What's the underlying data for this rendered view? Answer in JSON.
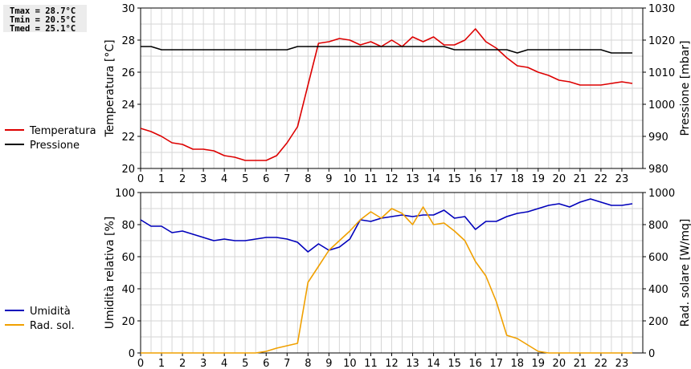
{
  "stats": {
    "tmax": "Tmax = 28.7°C",
    "tmin": "Tmin = 20.5°C",
    "tmed": "Tmed = 25.1°C"
  },
  "chart_data": [
    {
      "type": "line",
      "ylabel": "Temperatura [°C]",
      "y2label": "Pressione [mbar]",
      "xlim": [
        0,
        24
      ],
      "x_ticks": [
        0,
        1,
        2,
        3,
        4,
        5,
        6,
        7,
        8,
        9,
        10,
        11,
        12,
        13,
        14,
        15,
        16,
        17,
        18,
        19,
        20,
        21,
        22,
        23
      ],
      "ylim": [
        20,
        30
      ],
      "y_ticks": [
        20,
        22,
        24,
        26,
        28,
        30
      ],
      "y2lim": [
        980,
        1030
      ],
      "y2_ticks": [
        980,
        990,
        1000,
        1010,
        1020,
        1030
      ],
      "grid": true,
      "legend_position": "left",
      "series": [
        {
          "name": "Temperatura",
          "axis": "left",
          "color": "#dd0000",
          "x": [
            0,
            0.5,
            1,
            1.5,
            2,
            2.5,
            3,
            3.5,
            4,
            4.5,
            5,
            5.5,
            6,
            6.5,
            7,
            7.5,
            8,
            8.5,
            9,
            9.5,
            10,
            10.5,
            11,
            11.5,
            12,
            12.5,
            13,
            13.5,
            14,
            14.5,
            15,
            15.5,
            16,
            16.5,
            17,
            17.5,
            18,
            18.5,
            19,
            19.5,
            20,
            20.5,
            21,
            21.5,
            22,
            22.5,
            23,
            23.5
          ],
          "values": [
            22.5,
            22.3,
            22.0,
            21.6,
            21.5,
            21.2,
            21.2,
            21.1,
            20.8,
            20.7,
            20.5,
            20.5,
            20.5,
            20.8,
            21.6,
            22.6,
            25.2,
            27.8,
            27.9,
            28.1,
            28.0,
            27.7,
            27.9,
            27.6,
            28.0,
            27.6,
            28.2,
            27.9,
            28.2,
            27.7,
            27.7,
            28.0,
            28.7,
            27.9,
            27.5,
            26.9,
            26.4,
            26.3,
            26.0,
            25.8,
            25.5,
            25.4,
            25.2,
            25.2,
            25.2,
            25.3,
            25.4,
            25.3
          ]
        },
        {
          "name": "Pressione",
          "axis": "right",
          "color": "#000000",
          "x": [
            0,
            0.5,
            1,
            1.5,
            2,
            2.5,
            3,
            3.5,
            4,
            4.5,
            5,
            5.5,
            6,
            6.5,
            7,
            7.5,
            8,
            8.5,
            9,
            9.5,
            10,
            10.5,
            11,
            11.5,
            12,
            12.5,
            13,
            13.5,
            14,
            14.5,
            15,
            15.5,
            16,
            16.5,
            17,
            17.5,
            18,
            18.5,
            19,
            19.5,
            20,
            20.5,
            21,
            21.5,
            22,
            22.5,
            23,
            23.5
          ],
          "values": [
            1018,
            1018,
            1017,
            1017,
            1017,
            1017,
            1017,
            1017,
            1017,
            1017,
            1017,
            1017,
            1017,
            1017,
            1017,
            1018,
            1018,
            1018,
            1018,
            1018,
            1018,
            1018,
            1018,
            1018,
            1018,
            1018,
            1018,
            1018,
            1018,
            1018,
            1017,
            1017,
            1017,
            1017,
            1017,
            1017,
            1016,
            1017,
            1017,
            1017,
            1017,
            1017,
            1017,
            1017,
            1017,
            1016,
            1016,
            1016
          ]
        }
      ]
    },
    {
      "type": "line",
      "ylabel": "Umidità relativa [%]",
      "y2label": "Rad. solare [W/mq]",
      "xlim": [
        0,
        24
      ],
      "x_ticks": [
        0,
        1,
        2,
        3,
        4,
        5,
        6,
        7,
        8,
        9,
        10,
        11,
        12,
        13,
        14,
        15,
        16,
        17,
        18,
        19,
        20,
        21,
        22,
        23
      ],
      "ylim": [
        0,
        100
      ],
      "y_ticks": [
        0,
        20,
        40,
        60,
        80,
        100
      ],
      "y2lim": [
        0,
        1000
      ],
      "y2_ticks": [
        0,
        200,
        400,
        600,
        800,
        1000
      ],
      "grid": true,
      "legend_position": "left",
      "series": [
        {
          "name": "Umidità",
          "axis": "left",
          "color": "#0000bb",
          "x": [
            0,
            0.5,
            1,
            1.5,
            2,
            2.5,
            3,
            3.5,
            4,
            4.5,
            5,
            5.5,
            6,
            6.5,
            7,
            7.5,
            8,
            8.5,
            9,
            9.5,
            10,
            10.5,
            11,
            11.5,
            12,
            12.5,
            13,
            13.5,
            14,
            14.5,
            15,
            15.5,
            16,
            16.5,
            17,
            17.5,
            18,
            18.5,
            19,
            19.5,
            20,
            20.5,
            21,
            21.5,
            22,
            22.5,
            23,
            23.5
          ],
          "values": [
            83,
            79,
            79,
            75,
            76,
            74,
            72,
            70,
            71,
            70,
            70,
            71,
            72,
            72,
            71,
            69,
            63,
            68,
            64,
            66,
            71,
            83,
            82,
            84,
            85,
            86,
            85,
            86,
            86,
            89,
            84,
            85,
            77,
            82,
            82,
            85,
            87,
            88,
            90,
            92,
            93,
            91,
            94,
            96,
            94,
            92,
            92,
            93
          ]
        },
        {
          "name": "Rad. sol.",
          "axis": "right",
          "color": "#f0a000",
          "x": [
            0,
            0.5,
            1,
            1.5,
            2,
            2.5,
            3,
            3.5,
            4,
            4.5,
            5,
            5.5,
            6,
            6.5,
            7,
            7.5,
            8,
            8.5,
            9,
            9.5,
            10,
            10.5,
            11,
            11.5,
            12,
            12.5,
            13,
            13.5,
            14,
            14.5,
            15,
            15.5,
            16,
            16.5,
            17,
            17.5,
            18,
            18.5,
            19,
            19.5,
            20,
            20.5,
            21,
            21.5,
            22,
            22.5,
            23,
            23.5
          ],
          "values": [
            0,
            0,
            0,
            0,
            0,
            0,
            0,
            0,
            0,
            0,
            0,
            0,
            10,
            30,
            45,
            60,
            440,
            540,
            640,
            700,
            760,
            830,
            880,
            840,
            900,
            870,
            800,
            910,
            800,
            810,
            760,
            700,
            570,
            480,
            320,
            110,
            90,
            50,
            10,
            0,
            0,
            0,
            0,
            0,
            0,
            0,
            0,
            0
          ]
        }
      ]
    }
  ]
}
